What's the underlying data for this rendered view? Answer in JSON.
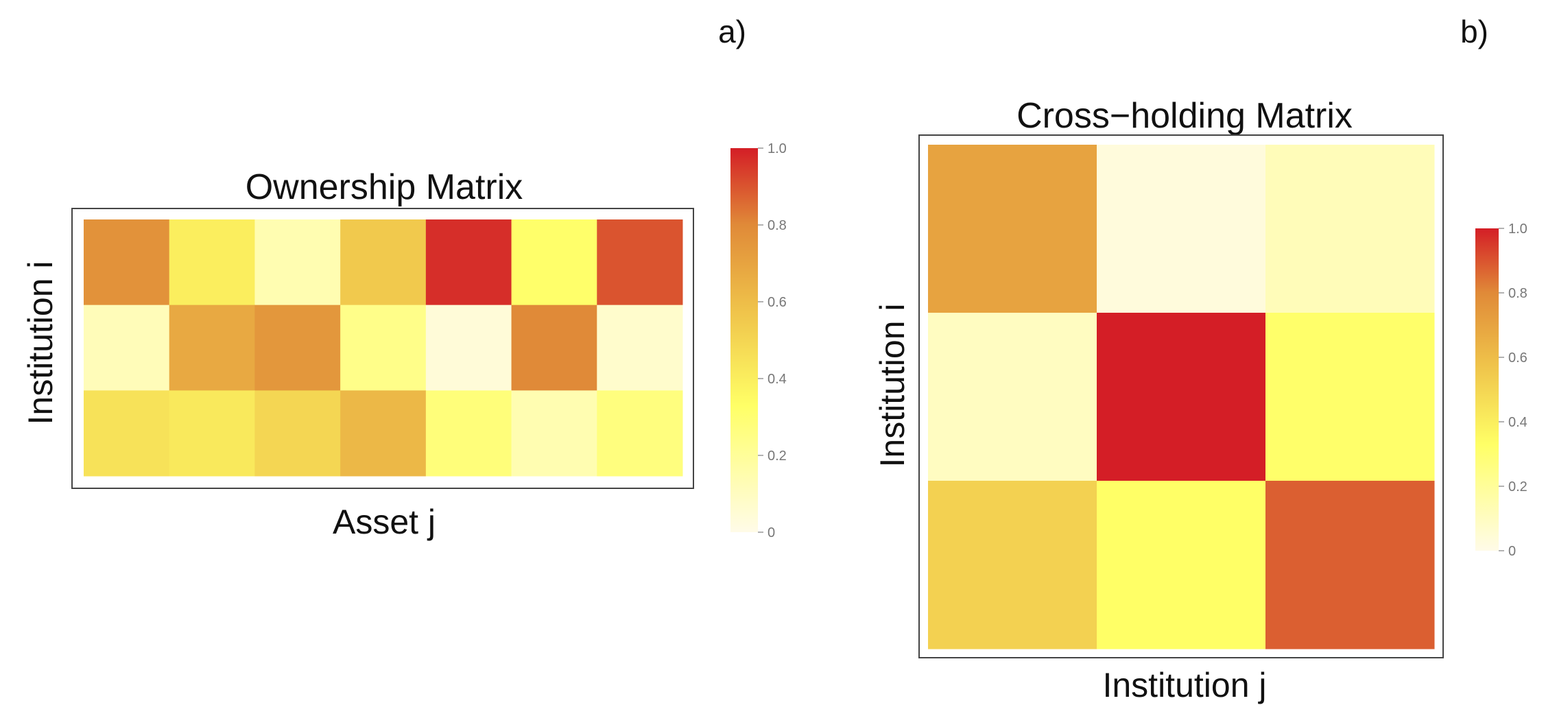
{
  "chart_data": [
    {
      "panel": "a)",
      "type": "heatmap",
      "title": "Ownership Matrix",
      "xlabel": "Asset j",
      "ylabel": "Institution i",
      "rows": 3,
      "cols": 7,
      "values": [
        [
          0.77,
          0.4,
          0.14,
          0.55,
          0.97,
          0.32,
          0.9
        ],
        [
          0.12,
          0.68,
          0.75,
          0.24,
          0.04,
          0.8,
          0.07
        ],
        [
          0.45,
          0.42,
          0.5,
          0.62,
          0.28,
          0.14,
          0.27
        ]
      ],
      "colorbar": {
        "min": 0,
        "max": 1.0,
        "ticks": [
          "0",
          "0.2",
          "0.4",
          "0.6",
          "0.8",
          "1.0"
        ]
      },
      "grid": false
    },
    {
      "panel": "b)",
      "type": "heatmap",
      "title": "Cross−holding Matrix",
      "xlabel": "Institution j",
      "ylabel": "Institution i",
      "rows": 3,
      "cols": 3,
      "values": [
        [
          0.7,
          0.03,
          0.12
        ],
        [
          0.1,
          1.0,
          0.32
        ],
        [
          0.52,
          0.33,
          0.88
        ]
      ],
      "colorbar": {
        "min": 0,
        "max": 1.0,
        "ticks": [
          "0",
          "0.2",
          "0.4",
          "0.6",
          "0.8",
          "1.0"
        ]
      },
      "grid": false
    }
  ],
  "colormap": [
    "#FFFBE8",
    "#FFFF66",
    "#EFC24A",
    "#E08A38",
    "#D41E26"
  ]
}
